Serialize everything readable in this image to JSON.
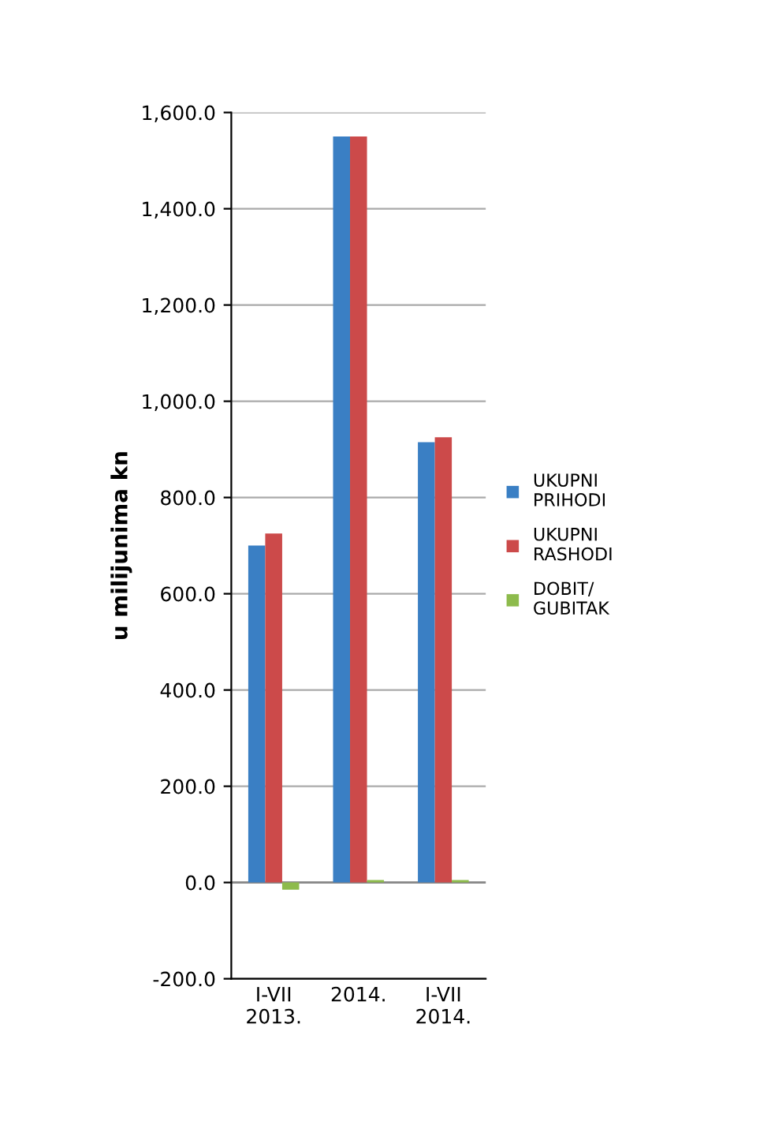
{
  "chart_data": {
    "type": "bar",
    "ylabel": "u milijunima kn",
    "categories": [
      "I-VII\n2013.",
      "2014.",
      "I-VII\n2014."
    ],
    "series": [
      {
        "name": "UKUPNI\nPRIHODI",
        "color": "#3a7fc4",
        "values": [
          700,
          1550,
          915
        ]
      },
      {
        "name": "UKUPNI\nRASHODI",
        "color": "#cc4a4a",
        "values": [
          725,
          1550,
          925
        ]
      },
      {
        "name": "DOBIT/\nGUBITAK",
        "color": "#8dbb4c",
        "values": [
          -15,
          5,
          5
        ]
      }
    ],
    "ylim": [
      -200,
      1600
    ],
    "yticks": [
      {
        "value": -200,
        "label": "-200.0"
      },
      {
        "value": 0,
        "label": "0.0"
      },
      {
        "value": 200,
        "label": "200.0"
      },
      {
        "value": 400,
        "label": "400.0"
      },
      {
        "value": 600,
        "label": "600.0"
      },
      {
        "value": 800,
        "label": "800.0"
      },
      {
        "value": 1000,
        "label": "1,000.0"
      },
      {
        "value": 1200,
        "label": "1,200.0"
      },
      {
        "value": 1400,
        "label": "1,400.0"
      },
      {
        "value": 1600,
        "label": "1,600.0"
      }
    ],
    "grid": "y",
    "legend": "right"
  }
}
